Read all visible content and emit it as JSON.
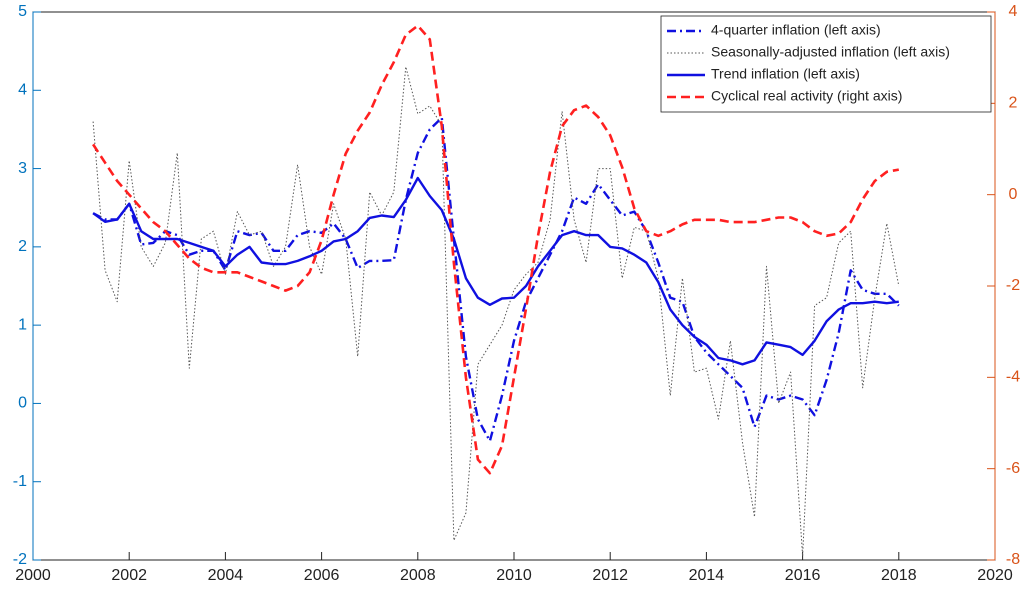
{
  "chart_data": {
    "type": "line",
    "x": [
      2001.25,
      2001.5,
      2001.75,
      2002,
      2002.25,
      2002.5,
      2002.75,
      2003,
      2003.25,
      2003.5,
      2003.75,
      2004,
      2004.25,
      2004.5,
      2004.75,
      2005,
      2005.25,
      2005.5,
      2005.75,
      2006,
      2006.25,
      2006.5,
      2006.75,
      2007,
      2007.25,
      2007.5,
      2007.75,
      2008,
      2008.25,
      2008.5,
      2008.75,
      2009,
      2009.25,
      2009.5,
      2009.75,
      2010,
      2010.25,
      2010.5,
      2010.75,
      2011,
      2011.25,
      2011.5,
      2011.75,
      2012,
      2012.25,
      2012.5,
      2012.75,
      2013,
      2013.25,
      2013.5,
      2013.75,
      2014,
      2014.25,
      2014.5,
      2014.75,
      2015,
      2015.25,
      2015.5,
      2015.75,
      2016,
      2016.25,
      2016.5,
      2016.75,
      2017,
      2017.25,
      2017.5,
      2017.75,
      2018
    ],
    "xlim": [
      2000,
      2020
    ],
    "xticks": [
      2000,
      2002,
      2004,
      2006,
      2008,
      2010,
      2012,
      2014,
      2016,
      2018,
      2020
    ],
    "ylim": [
      -2,
      5
    ],
    "yticks": [
      -2,
      -1,
      0,
      1,
      2,
      3,
      4,
      5
    ],
    "y2lim": [
      -8,
      4
    ],
    "y2ticks": [
      -8,
      -6,
      -4,
      -2,
      0,
      2,
      4
    ],
    "left_axis_color": "#0072bd",
    "right_axis_color": "#d95319",
    "legend": "upper right",
    "series": [
      {
        "name": "4-quarter inflation (left axis)",
        "color": "#1010e0",
        "linestyle": "dashdot",
        "axis": "y",
        "values": [
          2.43,
          2.35,
          2.35,
          2.55,
          2.03,
          2.05,
          2.2,
          2.15,
          1.9,
          1.95,
          1.95,
          1.7,
          2.2,
          2.15,
          2.18,
          1.95,
          1.95,
          2.15,
          2.2,
          2.18,
          2.3,
          2.1,
          1.73,
          1.82,
          1.82,
          1.83,
          2.6,
          3.2,
          3.5,
          3.65,
          2.1,
          0.6,
          -0.2,
          -0.48,
          0.1,
          0.8,
          1.3,
          1.6,
          1.9,
          2.2,
          2.63,
          2.55,
          2.8,
          2.6,
          2.4,
          2.45,
          2.2,
          1.8,
          1.35,
          1.3,
          0.85,
          0.65,
          0.5,
          0.35,
          0.2,
          -0.3,
          0.1,
          0.05,
          0.1,
          0.05,
          -0.15,
          0.3,
          0.9,
          1.7,
          1.45,
          1.4,
          1.4,
          1.25
        ]
      },
      {
        "name": "Seasonally-adjusted inflation (left axis)",
        "color": "#555555",
        "linestyle": "dotted",
        "axis": "y",
        "values": [
          3.6,
          1.7,
          1.3,
          3.1,
          2.0,
          1.75,
          2.05,
          3.2,
          0.45,
          2.1,
          2.2,
          1.65,
          2.45,
          2.15,
          2.2,
          1.75,
          2.0,
          3.05,
          2.0,
          1.65,
          2.55,
          2.1,
          0.6,
          2.7,
          2.4,
          2.7,
          4.3,
          3.7,
          3.8,
          3.55,
          -1.75,
          -1.4,
          0.5,
          0.75,
          1.0,
          1.45,
          1.65,
          1.8,
          2.35,
          3.73,
          2.35,
          1.8,
          3.0,
          3.0,
          1.6,
          2.25,
          2.2,
          1.6,
          0.1,
          1.6,
          0.4,
          0.45,
          -0.2,
          0.8,
          -0.5,
          -1.45,
          1.75,
          0.0,
          0.4,
          -1.95,
          1.25,
          1.35,
          2.05,
          2.2,
          0.2,
          1.35,
          2.3,
          1.5
        ]
      },
      {
        "name": "Trend inflation (left axis)",
        "color": "#1010e0",
        "linestyle": "solid",
        "axis": "y",
        "values": [
          2.43,
          2.32,
          2.35,
          2.55,
          2.2,
          2.1,
          2.1,
          2.1,
          2.05,
          2.0,
          1.95,
          1.75,
          1.9,
          2.0,
          1.8,
          1.78,
          1.78,
          1.82,
          1.88,
          1.95,
          2.07,
          2.1,
          2.2,
          2.37,
          2.4,
          2.38,
          2.6,
          2.88,
          2.65,
          2.47,
          2.1,
          1.6,
          1.35,
          1.26,
          1.34,
          1.35,
          1.5,
          1.75,
          1.95,
          2.15,
          2.2,
          2.15,
          2.15,
          2.0,
          1.98,
          1.9,
          1.8,
          1.55,
          1.2,
          1.0,
          0.85,
          0.75,
          0.58,
          0.55,
          0.5,
          0.55,
          0.78,
          0.75,
          0.72,
          0.62,
          0.8,
          1.05,
          1.2,
          1.28,
          1.28,
          1.3,
          1.28,
          1.3
        ]
      },
      {
        "name": "Cyclical real activity (right axis)",
        "color": "#ff2020",
        "linestyle": "dashed",
        "axis": "y2",
        "values": [
          1.1,
          0.7,
          0.3,
          0.0,
          -0.3,
          -0.6,
          -0.8,
          -1.1,
          -1.4,
          -1.6,
          -1.7,
          -1.7,
          -1.7,
          -1.8,
          -1.9,
          -2.0,
          -2.1,
          -2.0,
          -1.7,
          -1.0,
          0.0,
          0.9,
          1.4,
          1.8,
          2.4,
          2.9,
          3.5,
          3.7,
          3.4,
          1.5,
          -1.5,
          -4.0,
          -5.8,
          -6.1,
          -5.5,
          -4.0,
          -2.5,
          -0.9,
          0.5,
          1.5,
          1.85,
          1.95,
          1.7,
          1.3,
          0.6,
          -0.3,
          -0.8,
          -0.9,
          -0.8,
          -0.65,
          -0.55,
          -0.55,
          -0.55,
          -0.6,
          -0.6,
          -0.6,
          -0.55,
          -0.5,
          -0.5,
          -0.6,
          -0.8,
          -0.9,
          -0.85,
          -0.6,
          -0.1,
          0.3,
          0.5,
          0.55
        ]
      }
    ]
  }
}
